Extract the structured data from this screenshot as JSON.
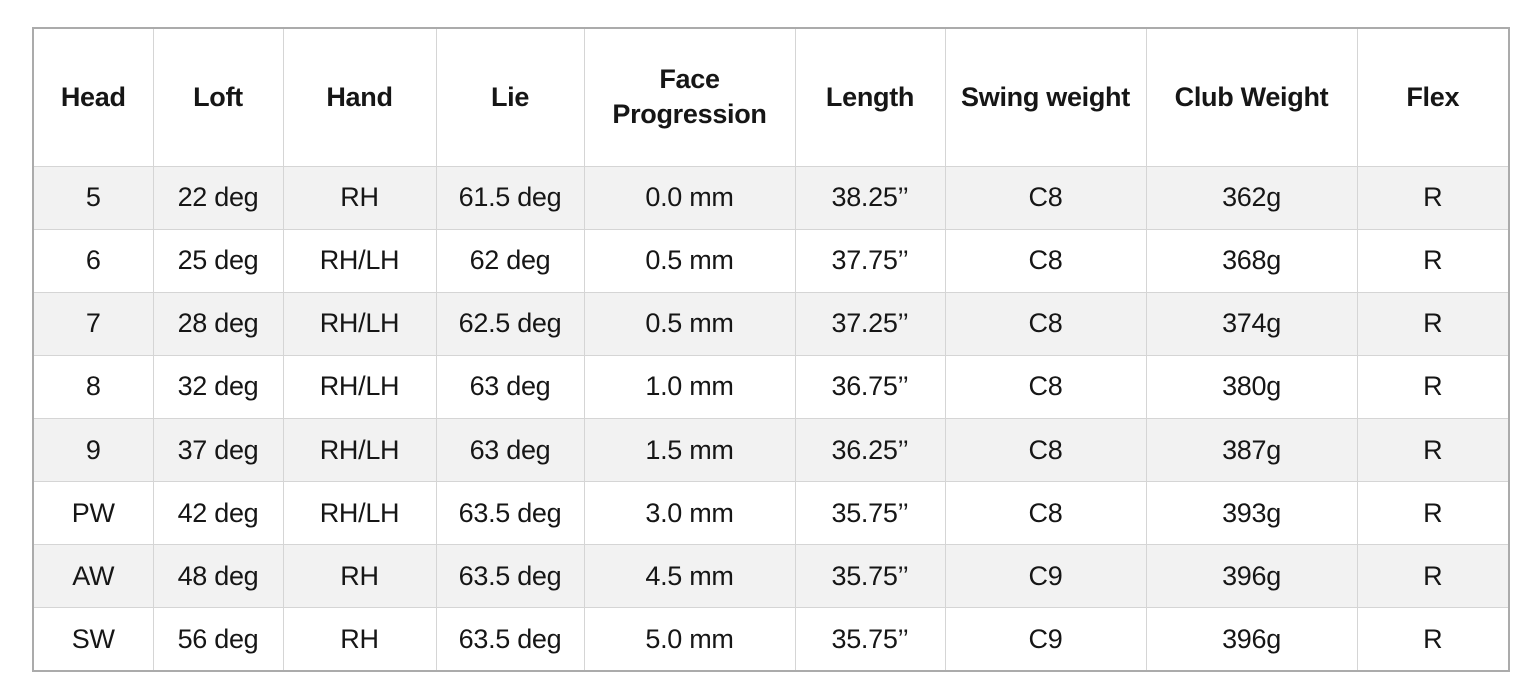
{
  "chart_data": {
    "type": "table",
    "title": "",
    "columns": [
      "Head",
      "Loft",
      "Hand",
      "Lie",
      "Face Progression",
      "Length",
      "Swing weight",
      "Club Weight",
      "Flex"
    ],
    "rows": [
      [
        "5",
        "22 deg",
        "RH",
        "61.5 deg",
        "0.0 mm",
        "38.25’’",
        "C8",
        "362g",
        "R"
      ],
      [
        "6",
        "25 deg",
        "RH/LH",
        "62 deg",
        "0.5 mm",
        "37.75’’",
        "C8",
        "368g",
        "R"
      ],
      [
        "7",
        "28 deg",
        "RH/LH",
        "62.5 deg",
        "0.5 mm",
        "37.25’’",
        "C8",
        "374g",
        "R"
      ],
      [
        "8",
        "32 deg",
        "RH/LH",
        "63 deg",
        "1.0 mm",
        "36.75’’",
        "C8",
        "380g",
        "R"
      ],
      [
        "9",
        "37 deg",
        "RH/LH",
        "63 deg",
        "1.5 mm",
        "36.25’’",
        "C8",
        "387g",
        "R"
      ],
      [
        "PW",
        "42 deg",
        "RH/LH",
        "63.5 deg",
        "3.0 mm",
        "35.75’’",
        "C8",
        "393g",
        "R"
      ],
      [
        "AW",
        "48 deg",
        "RH",
        "63.5 deg",
        "4.5 mm",
        "35.75’’",
        "C9",
        "396g",
        "R"
      ],
      [
        "SW",
        "56 deg",
        "RH",
        "63.5 deg",
        "5.0 mm",
        "35.75’’",
        "C9",
        "396g",
        "R"
      ]
    ],
    "layout": {
      "striping": "odd data rows shaded",
      "grid": true,
      "header_position": "top"
    }
  },
  "colors": {
    "stripe": "#f2f2f2",
    "border_inner": "#d5d5d5",
    "border_outer": "#ababab",
    "text": "#161616",
    "background": "#ffffff"
  }
}
